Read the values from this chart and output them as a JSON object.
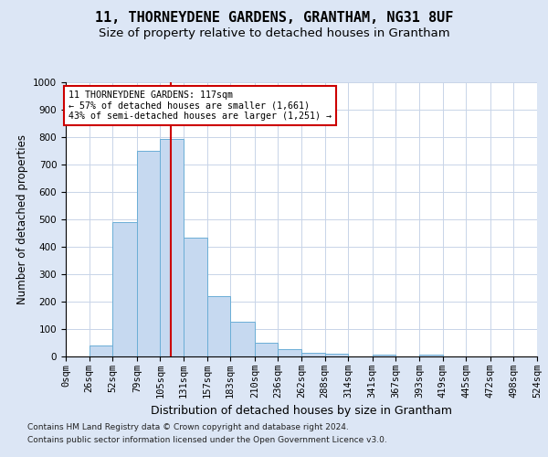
{
  "title": "11, THORNEYDENE GARDENS, GRANTHAM, NG31 8UF",
  "subtitle": "Size of property relative to detached houses in Grantham",
  "xlabel": "Distribution of detached houses by size in Grantham",
  "ylabel": "Number of detached properties",
  "footer_line1": "Contains HM Land Registry data © Crown copyright and database right 2024.",
  "footer_line2": "Contains public sector information licensed under the Open Government Licence v3.0.",
  "bin_edges": [
    0,
    26,
    52,
    79,
    105,
    131,
    157,
    183,
    210,
    236,
    262,
    288,
    314,
    341,
    367,
    393,
    419,
    445,
    472,
    498,
    524
  ],
  "bar_heights": [
    0,
    40,
    490,
    750,
    795,
    435,
    220,
    127,
    50,
    27,
    15,
    10,
    0,
    8,
    0,
    8,
    0,
    0,
    0,
    0
  ],
  "bar_color": "#c6d9f0",
  "bar_edge_color": "#6baed6",
  "grid_color": "#c8d4e8",
  "vline_x": 117,
  "vline_color": "#cc0000",
  "annotation_text": "11 THORNEYDENE GARDENS: 117sqm\n← 57% of detached houses are smaller (1,661)\n43% of semi-detached houses are larger (1,251) →",
  "annotation_box_color": "white",
  "annotation_box_edge": "#cc0000",
  "ylim": [
    0,
    1000
  ],
  "xlim": [
    0,
    524
  ],
  "background_color": "#dce6f5",
  "plot_bg_color": "#ffffff",
  "title_fontsize": 11,
  "subtitle_fontsize": 9.5,
  "xlabel_fontsize": 9,
  "ylabel_fontsize": 8.5,
  "tick_fontsize": 7.5,
  "footer_fontsize": 6.5,
  "annot_fontsize": 7.2
}
